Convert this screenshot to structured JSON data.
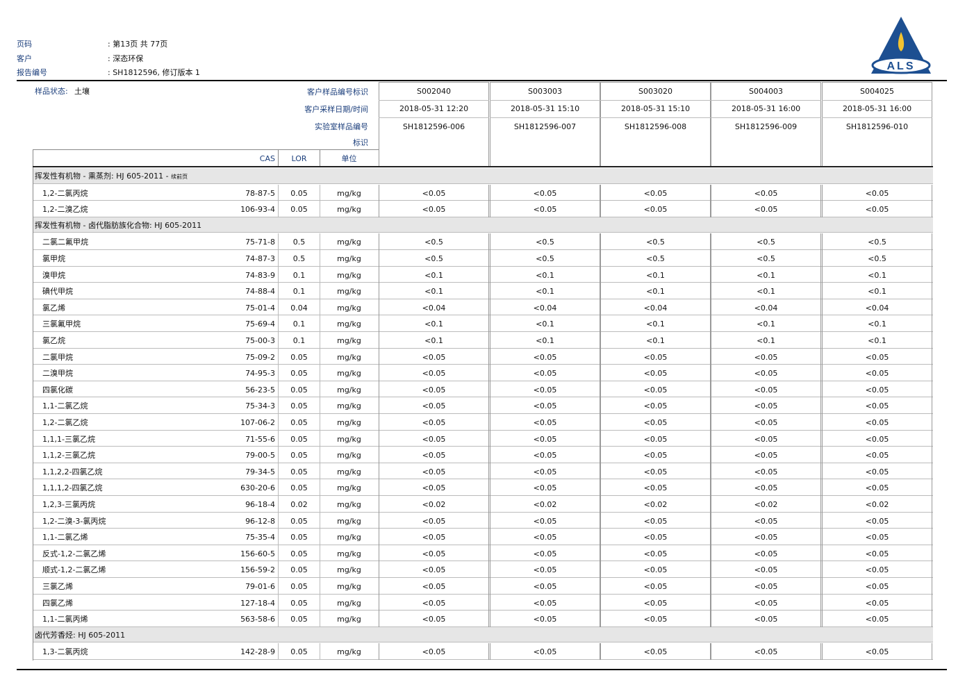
{
  "header": {
    "labels": [
      "页码",
      "客户",
      "报告编号"
    ],
    "values": [
      ": 第13页 共 77页",
      ": 深态环保",
      ": SH1812596, 修订版本 1"
    ]
  },
  "logo": {
    "text": "ALS"
  },
  "sample_state": {
    "label": "样品状态:",
    "value": "土壤"
  },
  "row_headers": [
    "客户样品编号标识",
    "客户采样日期/时间",
    "实验室样品编号",
    "标识"
  ],
  "column_headers": [
    "CAS",
    "LOR",
    "单位"
  ],
  "samples": [
    {
      "id": "S002040",
      "date": "2018-05-31 12:20",
      "lab_id": "SH1812596-006"
    },
    {
      "id": "S003003",
      "date": "2018-05-31 15:10",
      "lab_id": "SH1812596-007"
    },
    {
      "id": "S003020",
      "date": "2018-05-31 15:10",
      "lab_id": "SH1812596-008"
    },
    {
      "id": "S004003",
      "date": "2018-05-31 16:00",
      "lab_id": "SH1812596-009"
    },
    {
      "id": "S004025",
      "date": "2018-05-31 16:00",
      "lab_id": "SH1812596-010"
    }
  ],
  "sections": [
    {
      "title": "挥发性有机物 - 熏蒸剂: HJ 605-2011 - ",
      "note": "续前页",
      "rows": [
        [
          "1,2-二氯丙烷",
          "78-87-5",
          "0.05",
          "mg/kg",
          "<0.05",
          "<0.05",
          "<0.05",
          "<0.05",
          "<0.05"
        ],
        [
          "1,2-二溴乙烷",
          "106-93-4",
          "0.05",
          "mg/kg",
          "<0.05",
          "<0.05",
          "<0.05",
          "<0.05",
          "<0.05"
        ]
      ]
    },
    {
      "title": "挥发性有机物 - 卤代脂肪族化合物: HJ 605-2011",
      "rows": [
        [
          "二氯二氟甲烷",
          "75-71-8",
          "0.5",
          "mg/kg",
          "<0.5",
          "<0.5",
          "<0.5",
          "<0.5",
          "<0.5"
        ],
        [
          "氯甲烷",
          "74-87-3",
          "0.5",
          "mg/kg",
          "<0.5",
          "<0.5",
          "<0.5",
          "<0.5",
          "<0.5"
        ],
        [
          "溴甲烷",
          "74-83-9",
          "0.1",
          "mg/kg",
          "<0.1",
          "<0.1",
          "<0.1",
          "<0.1",
          "<0.1"
        ],
        [
          "碘代甲烷",
          "74-88-4",
          "0.1",
          "mg/kg",
          "<0.1",
          "<0.1",
          "<0.1",
          "<0.1",
          "<0.1"
        ],
        [
          "氯乙烯",
          "75-01-4",
          "0.04",
          "mg/kg",
          "<0.04",
          "<0.04",
          "<0.04",
          "<0.04",
          "<0.04"
        ],
        [
          "三氯氟甲烷",
          "75-69-4",
          "0.1",
          "mg/kg",
          "<0.1",
          "<0.1",
          "<0.1",
          "<0.1",
          "<0.1"
        ],
        [
          "氯乙烷",
          "75-00-3",
          "0.1",
          "mg/kg",
          "<0.1",
          "<0.1",
          "<0.1",
          "<0.1",
          "<0.1"
        ],
        [
          "二氯甲烷",
          "75-09-2",
          "0.05",
          "mg/kg",
          "<0.05",
          "<0.05",
          "<0.05",
          "<0.05",
          "<0.05"
        ],
        [
          "二溴甲烷",
          "74-95-3",
          "0.05",
          "mg/kg",
          "<0.05",
          "<0.05",
          "<0.05",
          "<0.05",
          "<0.05"
        ],
        [
          "四氯化碳",
          "56-23-5",
          "0.05",
          "mg/kg",
          "<0.05",
          "<0.05",
          "<0.05",
          "<0.05",
          "<0.05"
        ],
        [
          "1,1-二氯乙烷",
          "75-34-3",
          "0.05",
          "mg/kg",
          "<0.05",
          "<0.05",
          "<0.05",
          "<0.05",
          "<0.05"
        ],
        [
          "1,2-二氯乙烷",
          "107-06-2",
          "0.05",
          "mg/kg",
          "<0.05",
          "<0.05",
          "<0.05",
          "<0.05",
          "<0.05"
        ],
        [
          "1,1,1-三氯乙烷",
          "71-55-6",
          "0.05",
          "mg/kg",
          "<0.05",
          "<0.05",
          "<0.05",
          "<0.05",
          "<0.05"
        ],
        [
          "1,1,2-三氯乙烷",
          "79-00-5",
          "0.05",
          "mg/kg",
          "<0.05",
          "<0.05",
          "<0.05",
          "<0.05",
          "<0.05"
        ],
        [
          "1,1,2,2-四氯乙烷",
          "79-34-5",
          "0.05",
          "mg/kg",
          "<0.05",
          "<0.05",
          "<0.05",
          "<0.05",
          "<0.05"
        ],
        [
          "1,1,1,2-四氯乙烷",
          "630-20-6",
          "0.05",
          "mg/kg",
          "<0.05",
          "<0.05",
          "<0.05",
          "<0.05",
          "<0.05"
        ],
        [
          "1,2,3-三氯丙烷",
          "96-18-4",
          "0.02",
          "mg/kg",
          "<0.02",
          "<0.02",
          "<0.02",
          "<0.02",
          "<0.02"
        ],
        [
          "1,2-二溴-3-氯丙烷",
          "96-12-8",
          "0.05",
          "mg/kg",
          "<0.05",
          "<0.05",
          "<0.05",
          "<0.05",
          "<0.05"
        ],
        [
          "1,1-二氯乙烯",
          "75-35-4",
          "0.05",
          "mg/kg",
          "<0.05",
          "<0.05",
          "<0.05",
          "<0.05",
          "<0.05"
        ],
        [
          "反式-1,2-二氯乙烯",
          "156-60-5",
          "0.05",
          "mg/kg",
          "<0.05",
          "<0.05",
          "<0.05",
          "<0.05",
          "<0.05"
        ],
        [
          "顺式-1,2-二氯乙烯",
          "156-59-2",
          "0.05",
          "mg/kg",
          "<0.05",
          "<0.05",
          "<0.05",
          "<0.05",
          "<0.05"
        ],
        [
          "三氯乙烯",
          "79-01-6",
          "0.05",
          "mg/kg",
          "<0.05",
          "<0.05",
          "<0.05",
          "<0.05",
          "<0.05"
        ],
        [
          "四氯乙烯",
          "127-18-4",
          "0.05",
          "mg/kg",
          "<0.05",
          "<0.05",
          "<0.05",
          "<0.05",
          "<0.05"
        ],
        [
          "1,1-二氯丙烯",
          "563-58-6",
          "0.05",
          "mg/kg",
          "<0.05",
          "<0.05",
          "<0.05",
          "<0.05",
          "<0.05"
        ]
      ]
    },
    {
      "title": "卤代芳香烃: HJ 605-2011",
      "rows": [
        [
          "1,3-二氯丙烷",
          "142-28-9",
          "0.05",
          "mg/kg",
          "<0.05",
          "<0.05",
          "<0.05",
          "<0.05",
          "<0.05"
        ]
      ]
    }
  ]
}
